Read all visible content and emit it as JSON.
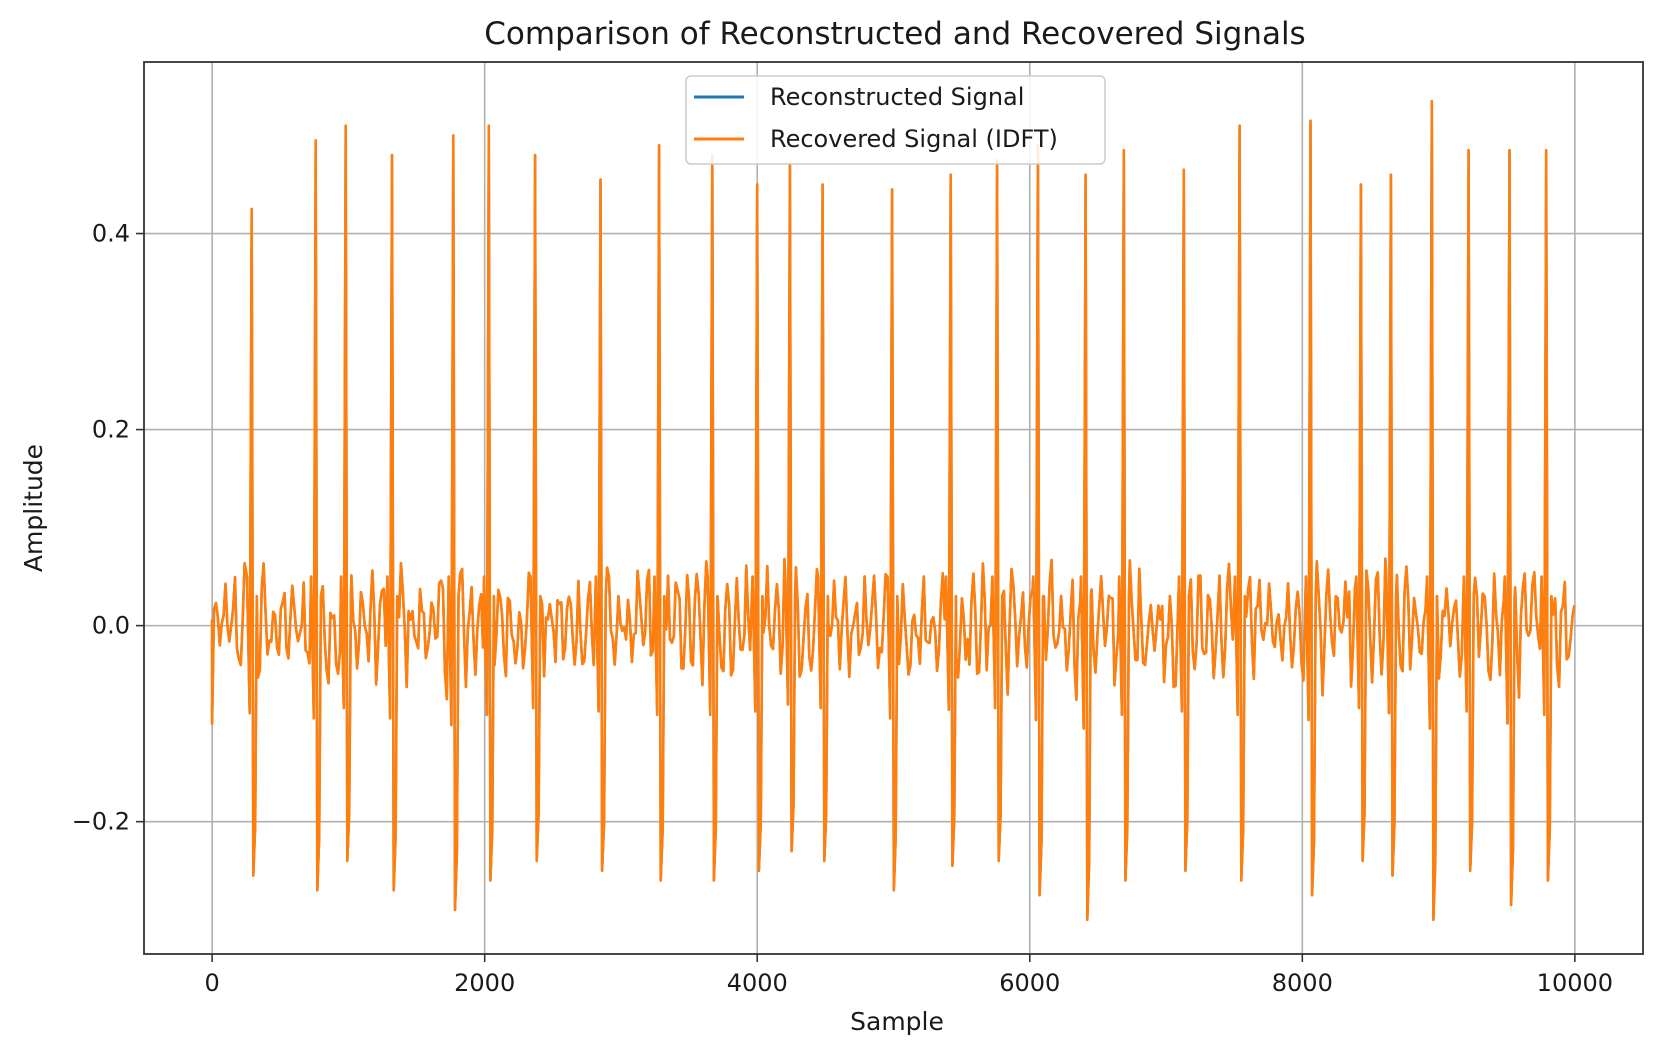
{
  "chart_data": {
    "type": "line",
    "title": "Comparison of Reconstructed and Recovered Signals",
    "xlabel": "Sample",
    "ylabel": "Amplitude",
    "xlim": [
      -500,
      10500
    ],
    "ylim": [
      -0.335,
      0.575
    ],
    "x_ticks": [
      0,
      2000,
      4000,
      6000,
      8000,
      10000
    ],
    "x_tick_labels": [
      "0",
      "2000",
      "4000",
      "6000",
      "8000",
      "10000"
    ],
    "y_ticks": [
      -0.2,
      0.0,
      0.2,
      0.4
    ],
    "y_tick_labels": [
      "−0.2",
      "0.0",
      "0.2",
      "0.4"
    ],
    "grid": true,
    "legend_position": "top-center",
    "series": [
      {
        "name": "Reconstructed Signal",
        "color": "#1f77b4"
      },
      {
        "name": "Recovered Signal (IDFT)",
        "color": "#ff7f0e"
      }
    ],
    "beats": [
      {
        "x": 290,
        "peak": 0.425,
        "trough": -0.255
      },
      {
        "x": 760,
        "peak": 0.495,
        "trough": -0.27
      },
      {
        "x": 980,
        "peak": 0.51,
        "trough": -0.24
      },
      {
        "x": 1320,
        "peak": 0.48,
        "trough": -0.27
      },
      {
        "x": 1770,
        "peak": 0.5,
        "trough": -0.29
      },
      {
        "x": 2030,
        "peak": 0.51,
        "trough": -0.26
      },
      {
        "x": 2370,
        "peak": 0.48,
        "trough": -0.24
      },
      {
        "x": 2850,
        "peak": 0.455,
        "trough": -0.25
      },
      {
        "x": 3280,
        "peak": 0.49,
        "trough": -0.26
      },
      {
        "x": 3670,
        "peak": 0.48,
        "trough": -0.26
      },
      {
        "x": 4000,
        "peak": 0.45,
        "trough": -0.25
      },
      {
        "x": 4240,
        "peak": 0.47,
        "trough": -0.23
      },
      {
        "x": 4480,
        "peak": 0.45,
        "trough": -0.24
      },
      {
        "x": 4990,
        "peak": 0.445,
        "trough": -0.27
      },
      {
        "x": 5420,
        "peak": 0.46,
        "trough": -0.245
      },
      {
        "x": 5760,
        "peak": 0.475,
        "trough": -0.24
      },
      {
        "x": 6060,
        "peak": 0.49,
        "trough": -0.275
      },
      {
        "x": 6410,
        "peak": 0.46,
        "trough": -0.3
      },
      {
        "x": 6690,
        "peak": 0.485,
        "trough": -0.26
      },
      {
        "x": 7130,
        "peak": 0.465,
        "trough": -0.25
      },
      {
        "x": 7540,
        "peak": 0.51,
        "trough": -0.26
      },
      {
        "x": 8060,
        "peak": 0.515,
        "trough": -0.275
      },
      {
        "x": 8430,
        "peak": 0.45,
        "trough": -0.24
      },
      {
        "x": 8650,
        "peak": 0.46,
        "trough": -0.255
      },
      {
        "x": 8950,
        "peak": 0.535,
        "trough": -0.3
      },
      {
        "x": 9220,
        "peak": 0.485,
        "trough": -0.25
      },
      {
        "x": 9520,
        "peak": 0.485,
        "trough": -0.285
      },
      {
        "x": 9790,
        "peak": 0.485,
        "trough": -0.26
      }
    ],
    "noise_amplitude": 0.06,
    "x_range": [
      0,
      10000
    ]
  }
}
